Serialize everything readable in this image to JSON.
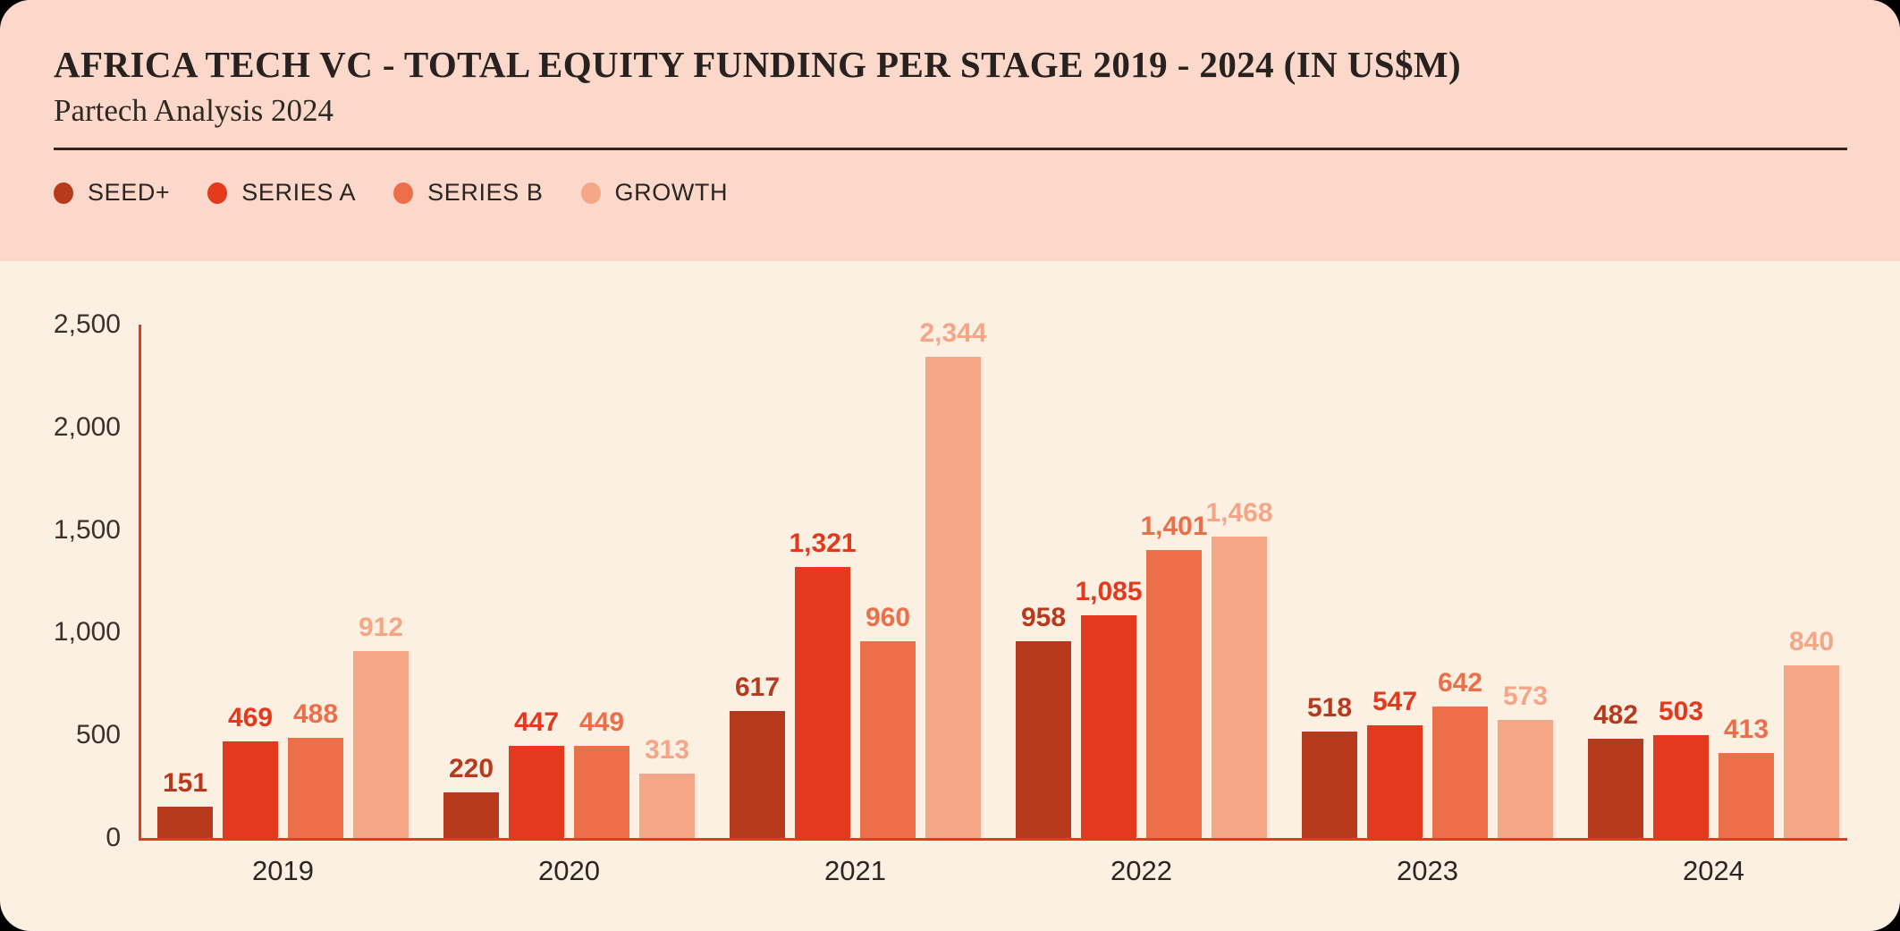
{
  "page": {
    "outer_background": "#000000",
    "card_background": "#fcf0e3",
    "header_background": "#fbd8c9",
    "axis_color": "#e8391f"
  },
  "header": {
    "title": "AFRICA TECH VC - TOTAL EQUITY FUNDING PER STAGE 2019 - 2024 (IN US$M)",
    "subtitle": "Partech Analysis 2024"
  },
  "legend": {
    "position": "top-left",
    "items": [
      {
        "label": "SEED+",
        "color": "#b83a1e"
      },
      {
        "label": "SERIES A",
        "color": "#e5391d"
      },
      {
        "label": "SERIES B",
        "color": "#ec6f4a"
      },
      {
        "label": "GROWTH",
        "color": "#f4a687"
      }
    ]
  },
  "chart_data": {
    "type": "bar",
    "title": "AFRICA TECH VC - TOTAL EQUITY FUNDING PER STAGE 2019 - 2024 (IN US$M)",
    "subtitle": "Partech Analysis 2024",
    "categories": [
      "2019",
      "2020",
      "2021",
      "2022",
      "2023",
      "2024"
    ],
    "series": [
      {
        "name": "SEED+",
        "color": "#b83a1e",
        "values": [
          151,
          220,
          617,
          958,
          518,
          482
        ]
      },
      {
        "name": "SERIES A",
        "color": "#e5391d",
        "values": [
          469,
          447,
          1321,
          1085,
          547,
          503
        ]
      },
      {
        "name": "SERIES B",
        "color": "#ec6f4a",
        "values": [
          488,
          449,
          960,
          1401,
          642,
          413
        ]
      },
      {
        "name": "GROWTH",
        "color": "#f4a687",
        "values": [
          912,
          313,
          2344,
          1468,
          573,
          840
        ]
      }
    ],
    "value_labels": true,
    "xlabel": "",
    "ylabel": "",
    "ylim": [
      0,
      2500
    ],
    "yticks": [
      "0",
      "500",
      "1,000",
      "1,500",
      "2,000",
      "2,500"
    ],
    "grid": false,
    "legend_position": "top",
    "axis_color": "#e8391f",
    "bar_label_color_matches_series": true
  }
}
